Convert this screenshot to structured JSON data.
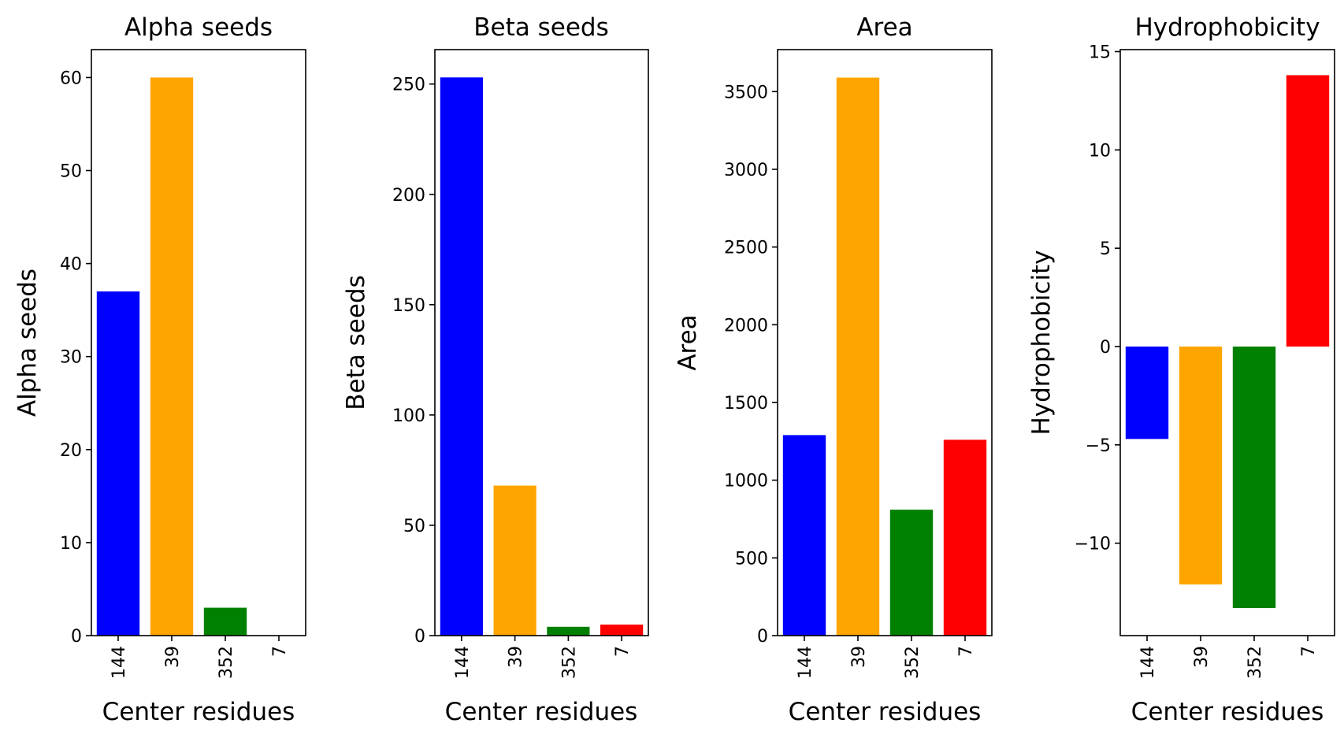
{
  "figure": {
    "background": "#ffffff"
  },
  "chart_data": [
    {
      "type": "bar",
      "title": "Alpha seeds",
      "xlabel": "Center residues",
      "ylabel": "Alpha seeds",
      "categories": [
        "144",
        "39",
        "352",
        "7"
      ],
      "values": [
        37,
        60,
        3,
        0
      ],
      "colors": [
        "#0000ff",
        "#ffa500",
        "#008000",
        "#ff0000"
      ],
      "ylim": [
        0,
        63
      ],
      "yticks": [
        0,
        10,
        20,
        30,
        40,
        50,
        60
      ],
      "ytick_labels": [
        "0",
        "10",
        "20",
        "30",
        "40",
        "50",
        "60"
      ],
      "grid": false
    },
    {
      "type": "bar",
      "title": "Beta seeds",
      "xlabel": "Center residues",
      "ylabel": "Beta seeds",
      "categories": [
        "144",
        "39",
        "352",
        "7"
      ],
      "values": [
        253,
        68,
        4,
        5
      ],
      "colors": [
        "#0000ff",
        "#ffa500",
        "#008000",
        "#ff0000"
      ],
      "ylim": [
        0,
        265.6
      ],
      "yticks": [
        0,
        50,
        100,
        150,
        200,
        250
      ],
      "ytick_labels": [
        "0",
        "50",
        "100",
        "150",
        "200",
        "250"
      ],
      "grid": false
    },
    {
      "type": "bar",
      "title": "Area",
      "xlabel": "Center residues",
      "ylabel": "Area",
      "categories": [
        "144",
        "39",
        "352",
        "7"
      ],
      "values": [
        1290,
        3590,
        810,
        1260
      ],
      "colors": [
        "#0000ff",
        "#ffa500",
        "#008000",
        "#ff0000"
      ],
      "ylim": [
        0,
        3770
      ],
      "yticks": [
        0,
        500,
        1000,
        1500,
        2000,
        2500,
        3000,
        3500
      ],
      "ytick_labels": [
        "0",
        "500",
        "1000",
        "1500",
        "2000",
        "2500",
        "3000",
        "3500"
      ],
      "grid": false
    },
    {
      "type": "bar",
      "title": "Hydrophobicity",
      "xlabel": "Center residues",
      "ylabel": "Hydrophobicity",
      "categories": [
        "144",
        "39",
        "352",
        "7"
      ],
      "values": [
        -4.7,
        -12.1,
        -13.3,
        13.8
      ],
      "colors": [
        "#0000ff",
        "#ffa500",
        "#008000",
        "#ff0000"
      ],
      "ylim": [
        -14.7,
        15.1
      ],
      "yticks": [
        -10,
        -5,
        0,
        5,
        10,
        15
      ],
      "ytick_labels": [
        "−10",
        "−5",
        "0",
        "5",
        "10",
        "15"
      ],
      "grid": false
    }
  ]
}
